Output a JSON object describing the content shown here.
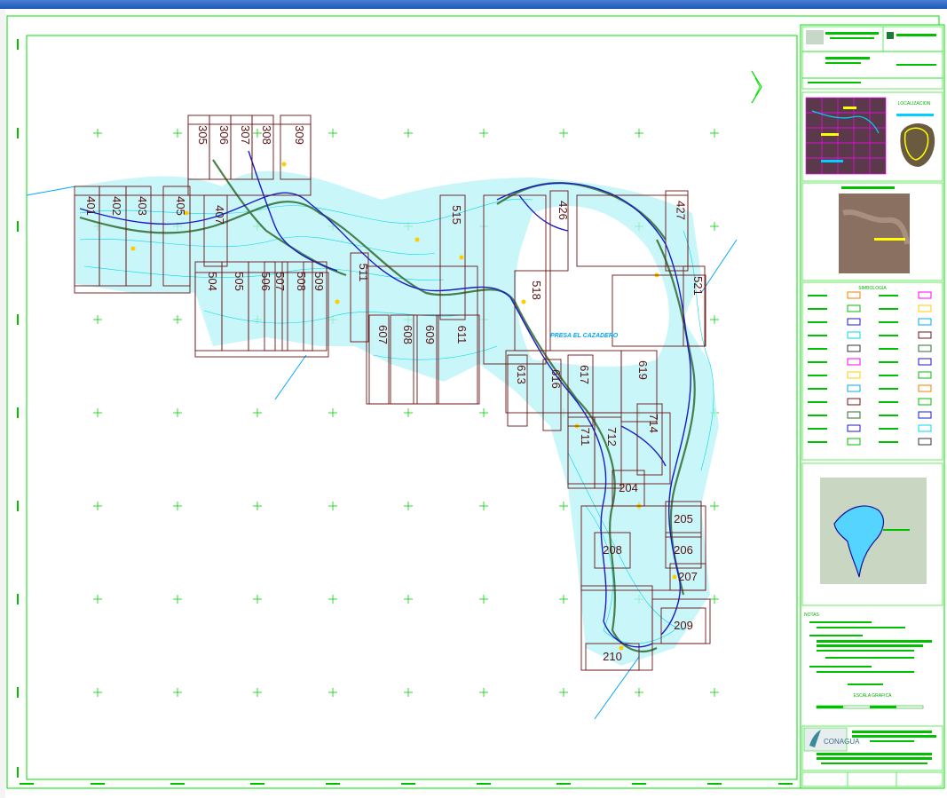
{
  "map": {
    "lake_label": "PRESA EL CAZADERO",
    "sheets": [
      {
        "label": "305"
      },
      {
        "label": "306"
      },
      {
        "label": "307"
      },
      {
        "label": "308"
      },
      {
        "label": "309"
      },
      {
        "label": "401"
      },
      {
        "label": "402"
      },
      {
        "label": "403"
      },
      {
        "label": "405"
      },
      {
        "label": "407"
      },
      {
        "label": "504"
      },
      {
        "label": "505"
      },
      {
        "label": "506"
      },
      {
        "label": "507"
      },
      {
        "label": "508"
      },
      {
        "label": "509"
      },
      {
        "label": "511"
      },
      {
        "label": "515"
      },
      {
        "label": "518"
      },
      {
        "label": "607"
      },
      {
        "label": "608"
      },
      {
        "label": "609"
      },
      {
        "label": "611"
      },
      {
        "label": "613"
      },
      {
        "label": "616"
      },
      {
        "label": "617"
      },
      {
        "label": "619"
      },
      {
        "label": "426"
      },
      {
        "label": "427"
      },
      {
        "label": "521"
      },
      {
        "label": "711"
      },
      {
        "label": "712"
      },
      {
        "label": "714"
      },
      {
        "label": "204"
      },
      {
        "label": "205"
      },
      {
        "label": "206"
      },
      {
        "label": "207"
      },
      {
        "label": "208"
      },
      {
        "label": "209"
      },
      {
        "label": "210"
      }
    ]
  },
  "title_block": {
    "logo_text": "CONAGUA",
    "legend_heading": "SIMBOLOGIA",
    "location_heading": "LOCALIZACION",
    "notes_heading": "NOTAS",
    "scale_heading": "ESCALA GRAFICA"
  },
  "colors": {
    "frame": "#00e000",
    "sheet_grid": "#6b1414",
    "contour_light": "#00d8e8",
    "contour_dark": "#1a1acc",
    "vegetation": "#2f6b2f",
    "highlight": "#ffcc00",
    "magenta": "#ff00ff"
  }
}
